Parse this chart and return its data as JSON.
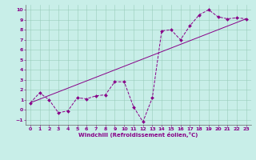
{
  "xlabel": "Windchill (Refroidissement éolien,°C)",
  "bg_color": "#c8eee8",
  "line_color": "#880088",
  "grid_color": "#99ccbb",
  "xlim": [
    -0.5,
    23.5
  ],
  "ylim": [
    -1.5,
    10.5
  ],
  "xticks": [
    0,
    1,
    2,
    3,
    4,
    5,
    6,
    7,
    8,
    9,
    10,
    11,
    12,
    13,
    14,
    15,
    16,
    17,
    18,
    19,
    20,
    21,
    22,
    23
  ],
  "yticks": [
    -1,
    0,
    1,
    2,
    3,
    4,
    5,
    6,
    7,
    8,
    9,
    10
  ],
  "line1_x": [
    0,
    1,
    2,
    3,
    4,
    5,
    6,
    7,
    8,
    9,
    10,
    11,
    12,
    13,
    14,
    15,
    16,
    17,
    18,
    19,
    20,
    21,
    22,
    23
  ],
  "line1_y": [
    0.7,
    1.7,
    1.0,
    -0.3,
    -0.1,
    1.2,
    1.1,
    1.4,
    1.5,
    2.8,
    2.8,
    0.3,
    -1.2,
    1.2,
    7.9,
    8.0,
    7.0,
    8.4,
    9.5,
    10.0,
    9.3,
    9.1,
    9.2,
    9.1
  ],
  "line2_x": [
    0,
    23
  ],
  "line2_y": [
    0.7,
    9.1
  ],
  "tick_fontsize": 4.5,
  "xlabel_fontsize": 5.0,
  "linewidth": 0.7,
  "markersize": 2.0
}
